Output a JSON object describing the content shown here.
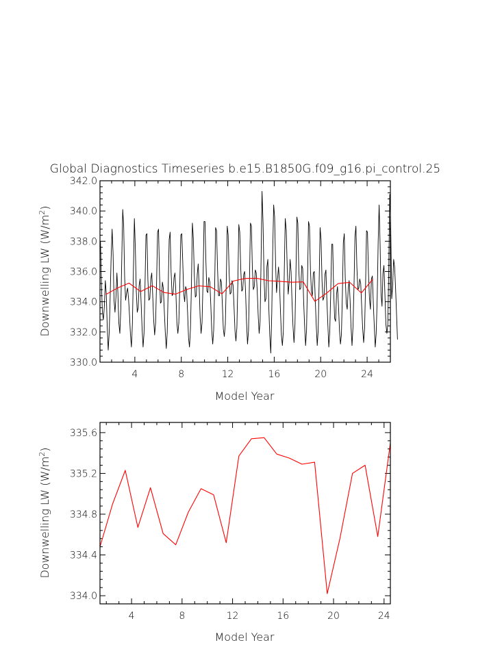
{
  "figure": {
    "title": "Global Diagnostics Timeseries b.e15.B1850G.f09_g16.pi_control.25"
  },
  "chart_data": [
    {
      "type": "line",
      "title": "Global Diagnostics Timeseries b.e15.B1850G.f09_g16.pi_control.25",
      "xlabel": "Model Year",
      "ylabel_main": "Downwelling LW (W/m",
      "ylabel_sup": "2",
      "ylabel_close": ")",
      "xlim": [
        1,
        26
      ],
      "ylim": [
        330,
        342
      ],
      "x_ticks": [
        4,
        8,
        12,
        16,
        20,
        24
      ],
      "x_tick_labels": [
        "4",
        "8",
        "12",
        "16",
        "20",
        "24"
      ],
      "y_ticks": [
        330,
        332,
        334,
        336,
        338,
        340,
        342
      ],
      "y_tick_labels": [
        "330.0",
        "332.0",
        "334.0",
        "336.0",
        "338.0",
        "340.0",
        "342.0"
      ],
      "series": [
        {
          "color": "#000000",
          "sampling": "monthly",
          "x_start": 1.0417,
          "x_step": 0.0833,
          "values": [
            338.0,
            335.2,
            333.3,
            332.8,
            333.7,
            335.4,
            334.5,
            332.3,
            330.8,
            331.9,
            334.2,
            336.8,
            338.8,
            337.2,
            334.1,
            333.3,
            334.3,
            335.9,
            334.6,
            332.6,
            331.9,
            333.5,
            336.8,
            340.1,
            339.0,
            335.6,
            334.1,
            334.6,
            334.9,
            334.2,
            333.1,
            331.8,
            331.0,
            332.5,
            335.8,
            339.5,
            337.6,
            334.7,
            333.3,
            333.6,
            335.1,
            335.5,
            334.0,
            332.2,
            331.0,
            331.9,
            335.0,
            338.4,
            338.5,
            335.5,
            334.1,
            334.2,
            335.5,
            335.9,
            334.4,
            332.8,
            331.8,
            332.6,
            335.2,
            338.6,
            338.8,
            335.8,
            333.9,
            334.0,
            335.3,
            334.9,
            333.4,
            331.9,
            330.9,
            332.0,
            334.9,
            338.1,
            338.6,
            336.0,
            334.4,
            334.5,
            335.6,
            335.9,
            334.5,
            332.6,
            331.9,
            332.6,
            335.2,
            338.4,
            338.5,
            336.7,
            334.6,
            334.0,
            335.0,
            334.8,
            333.3,
            331.6,
            331.0,
            332.2,
            335.0,
            339.2,
            338.2,
            335.8,
            334.3,
            334.4,
            335.8,
            336.5,
            335.0,
            333.0,
            331.9,
            332.6,
            335.4,
            339.3,
            339.3,
            336.6,
            334.7,
            334.6,
            335.6,
            335.3,
            333.8,
            332.1,
            331.2,
            332.1,
            334.9,
            338.9,
            338.7,
            336.1,
            334.4,
            334.4,
            335.5,
            335.3,
            333.8,
            332.2,
            331.7,
            332.5,
            335.3,
            339.0,
            338.4,
            335.9,
            334.5,
            334.6,
            335.4,
            335.1,
            333.7,
            332.1,
            331.4,
            332.3,
            335.3,
            339.1,
            338.6,
            336.1,
            334.7,
            334.8,
            335.8,
            336.0,
            334.6,
            332.6,
            331.2,
            332.1,
            335.5,
            339.2,
            339.0,
            336.2,
            334.8,
            335.0,
            336.1,
            335.9,
            334.7,
            333.1,
            331.9,
            332.7,
            336.7,
            341.3,
            339.2,
            335.6,
            334.0,
            334.2,
            336.3,
            336.8,
            333.6,
            331.8,
            330.6,
            333.2,
            337.3,
            340.4,
            339.6,
            336.5,
            334.6,
            335.5,
            336.3,
            335.3,
            333.4,
            331.8,
            331.1,
            332.0,
            336.0,
            339.5,
            338.7,
            336.2,
            334.5,
            335.3,
            336.8,
            336.0,
            334.0,
            332.4,
            331.3,
            332.5,
            335.8,
            339.6,
            339.2,
            336.1,
            334.8,
            334.9,
            336.4,
            336.2,
            334.0,
            332.4,
            331.1,
            332.1,
            335.4,
            339.3,
            339.0,
            336.1,
            334.7,
            334.4,
            335.9,
            336.0,
            334.2,
            332.4,
            331.1,
            332.1,
            335.3,
            338.9,
            338.1,
            335.4,
            334.1,
            334.3,
            335.8,
            336.1,
            334.1,
            332.5,
            331.0,
            332.0,
            334.6,
            337.8,
            337.8,
            334.7,
            332.9,
            332.7,
            334.5,
            335.0,
            333.8,
            332.1,
            331.2,
            331.8,
            334.4,
            337.9,
            338.5,
            335.6,
            333.9,
            333.5,
            334.8,
            335.4,
            334.1,
            332.3,
            331.1,
            332.3,
            335.0,
            338.3,
            339.0,
            336.3,
            334.8,
            334.9,
            335.5,
            335.2,
            333.6,
            332.2,
            331.3,
            332.3,
            335.1,
            338.7,
            338.6,
            335.9,
            334.2,
            333.5,
            335.5,
            335.7,
            333.9,
            332.4,
            331.0,
            331.9,
            334.3,
            338.0,
            340.4,
            337.8,
            334.5,
            333.7,
            335.9,
            336.4,
            334.4,
            332.5,
            331.9,
            332.5,
            336.3,
            341.1,
            339.0,
            334.2,
            335.1,
            336.8,
            336.3,
            334.9,
            333.2,
            331.5
          ]
        },
        {
          "color": "#ff0000",
          "sampling": "annual",
          "x": [
            1.5,
            2.5,
            3.5,
            4.5,
            5.5,
            6.5,
            7.5,
            8.5,
            9.5,
            10.5,
            11.5,
            12.5,
            13.5,
            14.5,
            15.5,
            16.5,
            17.5,
            18.5,
            19.5,
            20.5,
            21.5,
            22.5,
            23.5,
            24.5
          ],
          "values": [
            334.48,
            334.9,
            335.23,
            334.67,
            335.06,
            334.61,
            334.5,
            334.82,
            335.05,
            334.99,
            334.52,
            335.37,
            335.54,
            335.55,
            335.39,
            335.35,
            335.29,
            335.31,
            334.02,
            334.56,
            335.2,
            335.28,
            334.58,
            335.5
          ]
        }
      ]
    },
    {
      "type": "line",
      "xlabel": "Model Year",
      "ylabel_main": "Downwelling LW (W/m",
      "ylabel_sup": "2",
      "ylabel_close": ")",
      "xlim": [
        1.5,
        24.5
      ],
      "ylim": [
        333.92,
        335.7
      ],
      "x_ticks": [
        4,
        8,
        12,
        16,
        20,
        24
      ],
      "x_tick_labels": [
        "4",
        "8",
        "12",
        "16",
        "20",
        "24"
      ],
      "y_ticks": [
        334.0,
        334.4,
        334.8,
        335.2,
        335.6
      ],
      "y_tick_labels": [
        "334.0",
        "334.4",
        "334.8",
        "335.2",
        "335.6"
      ],
      "series": [
        {
          "color": "#ff0000",
          "x": [
            1.5,
            2.5,
            3.5,
            4.5,
            5.5,
            6.5,
            7.5,
            8.5,
            9.5,
            10.5,
            11.5,
            12.5,
            13.5,
            14.5,
            15.5,
            16.5,
            17.5,
            18.5,
            19.5,
            20.5,
            21.5,
            22.5,
            23.5,
            24.5
          ],
          "values": [
            334.48,
            334.9,
            335.23,
            334.67,
            335.06,
            334.61,
            334.5,
            334.82,
            335.05,
            334.99,
            334.52,
            335.37,
            335.54,
            335.55,
            335.39,
            335.35,
            335.29,
            335.31,
            334.02,
            334.56,
            335.2,
            335.28,
            334.58,
            335.5
          ]
        }
      ]
    }
  ]
}
